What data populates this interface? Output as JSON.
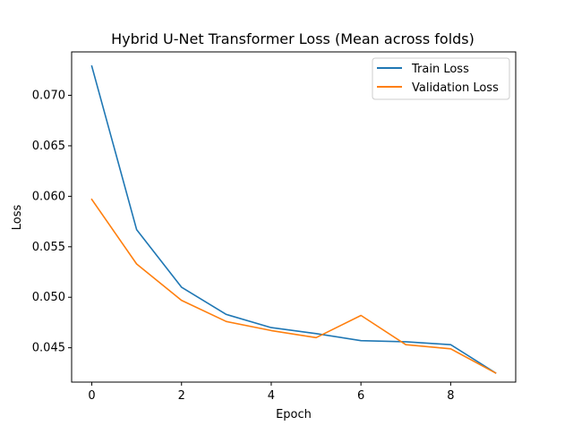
{
  "chart_data": {
    "type": "line",
    "title": "Hybrid U-Net Transformer Loss (Mean across folds)",
    "xlabel": "Epoch",
    "ylabel": "Loss",
    "xlim": [
      -0.45,
      9.45
    ],
    "ylim": [
      0.0416,
      0.0743
    ],
    "xticks": [
      0,
      2,
      4,
      6,
      8
    ],
    "xtick_labels": [
      "0",
      "2",
      "4",
      "6",
      "8"
    ],
    "yticks": [
      0.045,
      0.05,
      0.055,
      0.06,
      0.065,
      0.07
    ],
    "ytick_labels": [
      "0.045",
      "0.050",
      "0.055",
      "0.060",
      "0.065",
      "0.070"
    ],
    "grid": false,
    "legend_position": "upper right",
    "x": [
      0,
      1,
      2,
      3,
      4,
      5,
      6,
      7,
      8,
      9
    ],
    "series": [
      {
        "name": "Train Loss",
        "color": "#1f77b4",
        "values": [
          0.0729,
          0.0567,
          0.051,
          0.0483,
          0.047,
          0.0464,
          0.0457,
          0.0456,
          0.0453,
          0.0425
        ]
      },
      {
        "name": "Validation Loss",
        "color": "#ff7f0e",
        "values": [
          0.0597,
          0.0533,
          0.0497,
          0.0476,
          0.0467,
          0.046,
          0.0482,
          0.0453,
          0.0449,
          0.0425
        ]
      }
    ]
  }
}
